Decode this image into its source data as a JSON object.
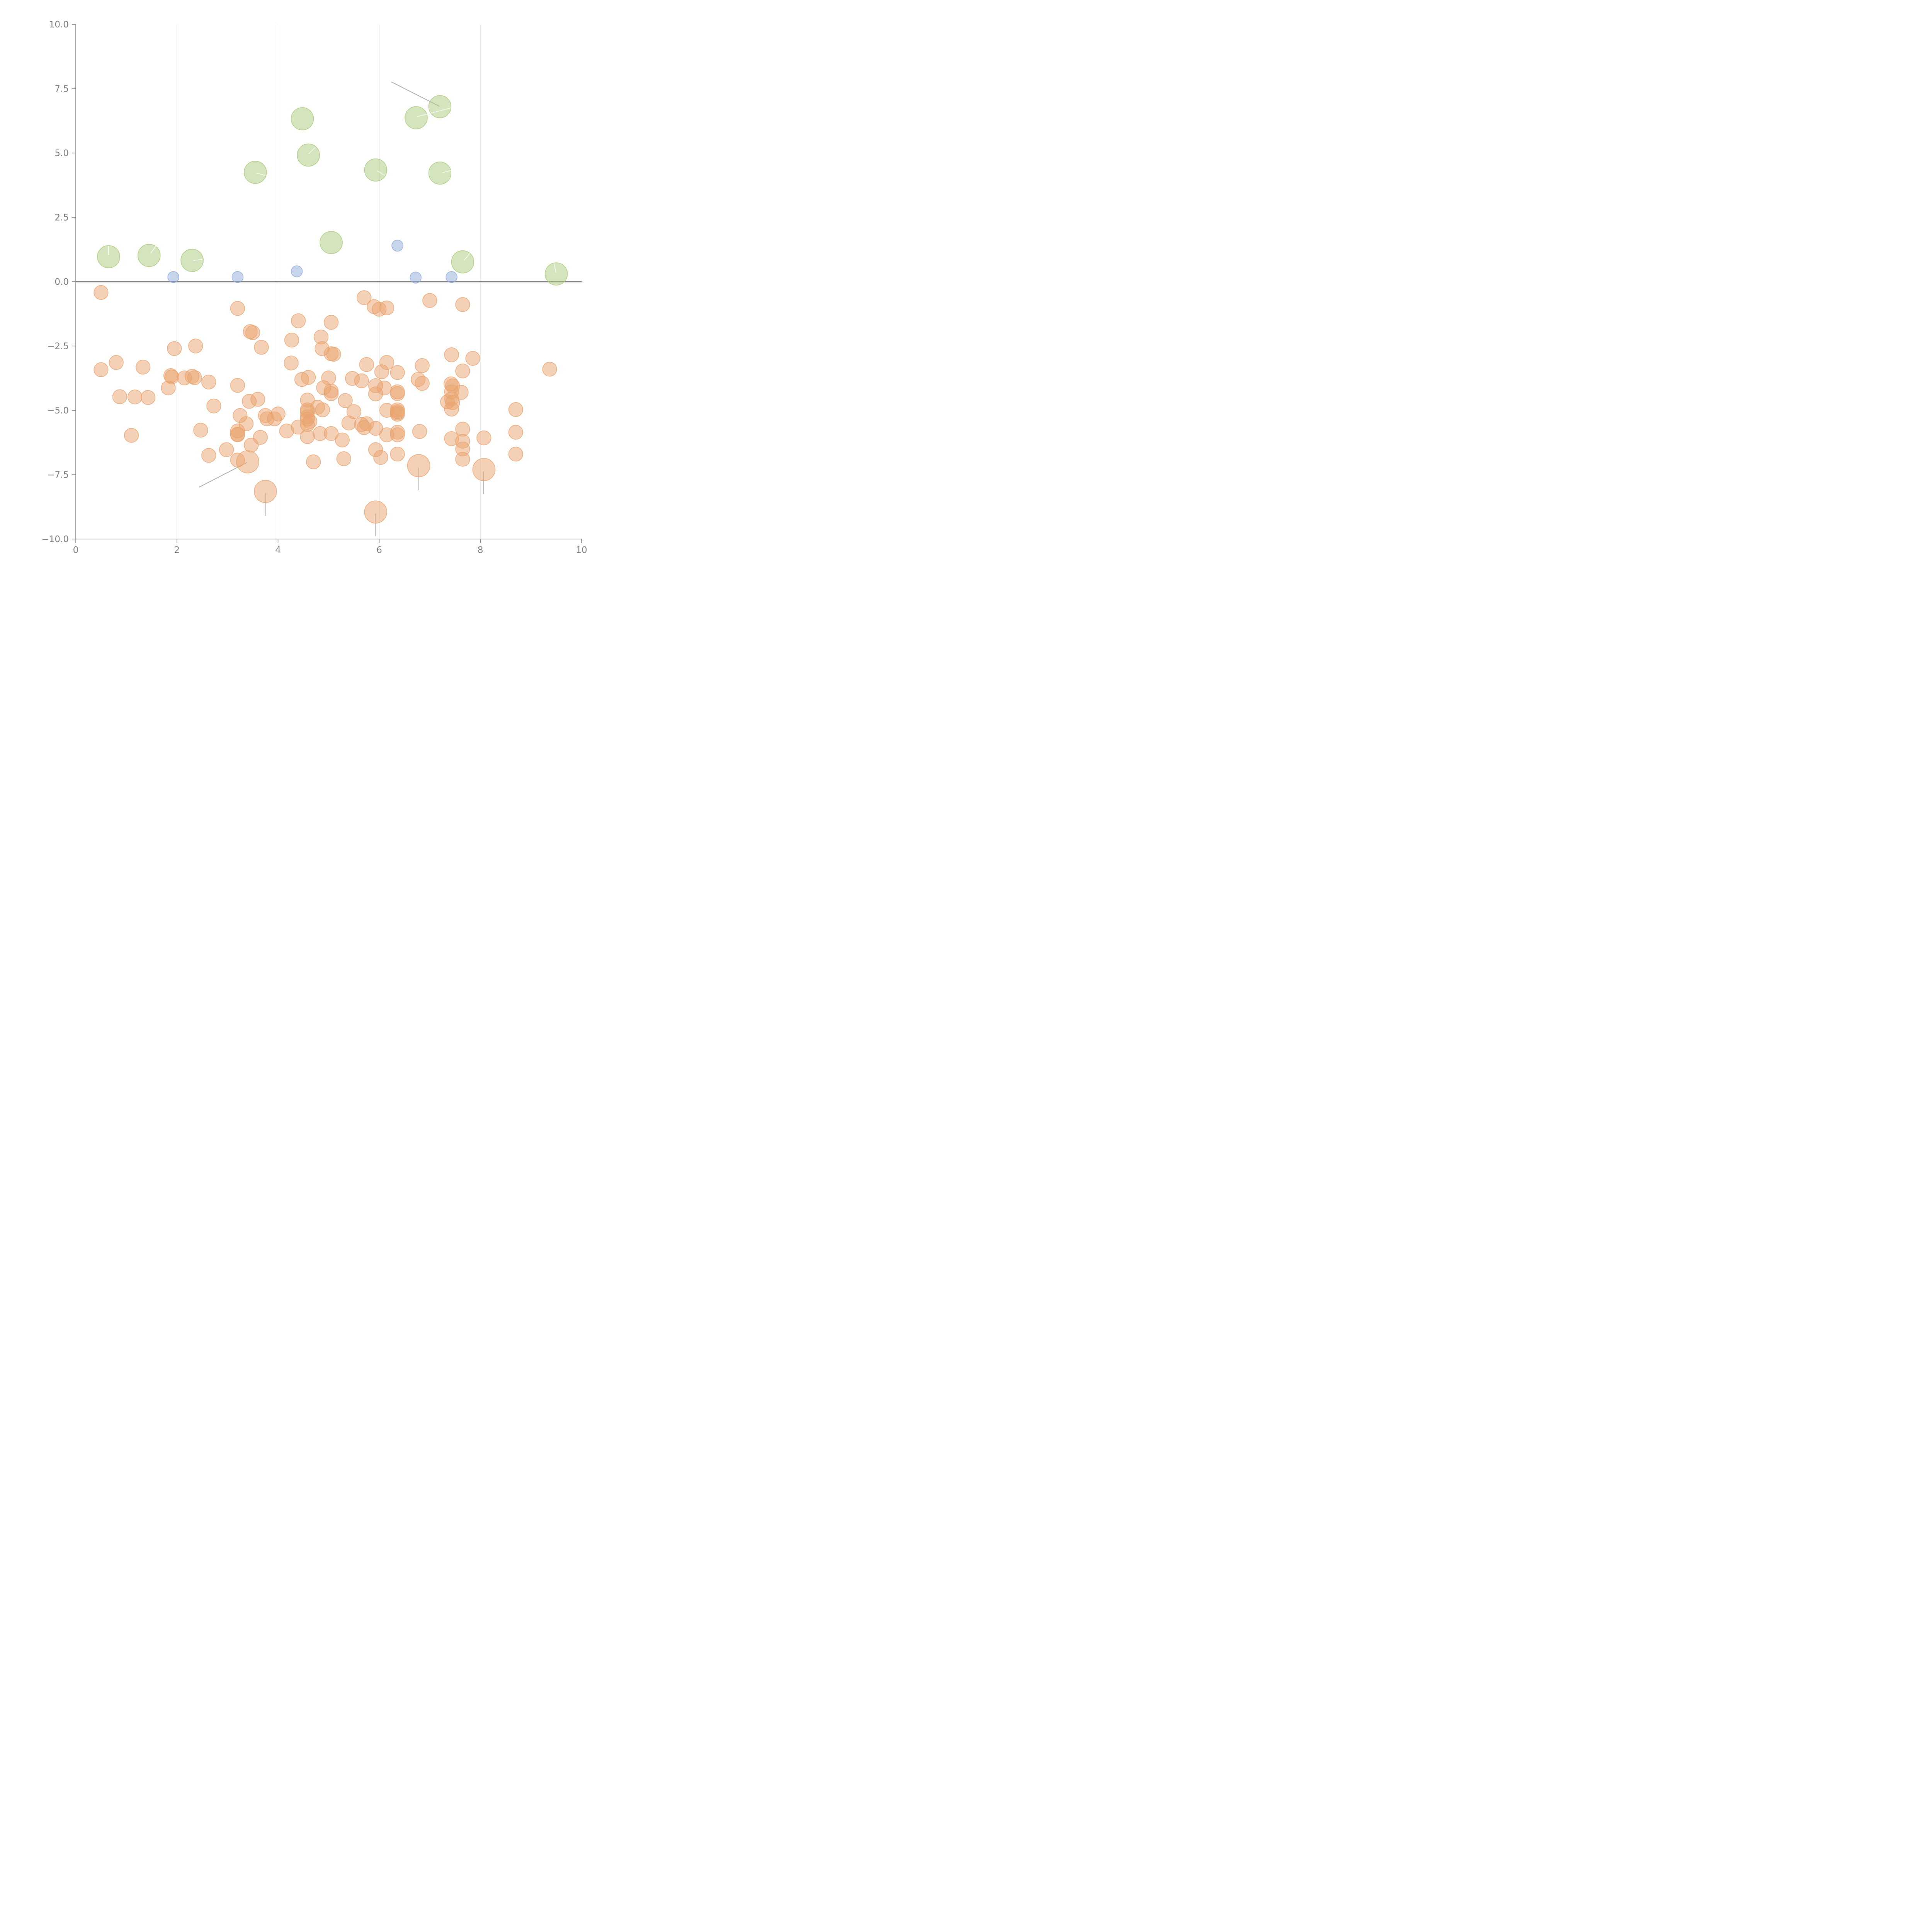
{
  "chart_data": {
    "type": "scatter",
    "title": "",
    "xlabel": "",
    "ylabel": "",
    "xlim": [
      0,
      10
    ],
    "ylim": [
      -10,
      10
    ],
    "x_ticks": [
      0,
      2,
      4,
      6,
      8,
      10
    ],
    "y_ticks": [
      10,
      7.5,
      5,
      2.5,
      0,
      -2.5,
      -5,
      -7.5,
      -10
    ],
    "x_tick_labels": [
      "0",
      "2",
      "4",
      "6",
      "8",
      "10"
    ],
    "y_tick_labels": [
      "10.0",
      "7.5",
      "5.0",
      "2.5",
      "0.0",
      "−2.5",
      "−5.0",
      "−7.5",
      "−10.0"
    ],
    "grid": "vertical",
    "zero_line": 0,
    "series": [
      {
        "name": "green",
        "color": "#a9c97a",
        "size": 4,
        "points": [
          [
            0.65,
            0.97
          ],
          [
            1.45,
            1.02
          ],
          [
            2.3,
            0.83
          ],
          [
            3.55,
            4.25
          ],
          [
            4.48,
            6.33
          ],
          [
            4.6,
            4.92
          ],
          [
            5.05,
            1.52
          ],
          [
            5.93,
            4.34
          ],
          [
            6.73,
            6.37
          ],
          [
            7.2,
            6.8
          ],
          [
            7.2,
            4.22
          ],
          [
            7.65,
            0.77
          ],
          [
            9.5,
            0.3
          ]
        ]
      },
      {
        "name": "blue",
        "color": "#8eaad9",
        "size": 1,
        "points": [
          [
            1.93,
            0.18
          ],
          [
            3.2,
            0.18
          ],
          [
            4.37,
            0.4
          ],
          [
            6.36,
            1.4
          ],
          [
            6.72,
            0.16
          ],
          [
            7.43,
            0.18
          ]
        ]
      },
      {
        "name": "orange-small",
        "color": "#e9a36e",
        "size": 1.6,
        "points": [
          [
            0.5,
            -0.42
          ],
          [
            3.2,
            -1.04
          ],
          [
            5.9,
            -0.97
          ],
          [
            6.0,
            -1.07
          ],
          [
            6.15,
            -1.02
          ],
          [
            5.7,
            -0.62
          ],
          [
            7.0,
            -0.73
          ],
          [
            7.65,
            -0.89
          ],
          [
            4.4,
            -1.52
          ],
          [
            5.05,
            -1.58
          ],
          [
            3.45,
            -1.94
          ],
          [
            3.5,
            -1.98
          ],
          [
            4.85,
            -2.15
          ],
          [
            1.95,
            -2.6
          ],
          [
            2.37,
            -2.5
          ],
          [
            3.67,
            -2.55
          ],
          [
            4.27,
            -2.27
          ],
          [
            4.87,
            -2.6
          ],
          [
            5.05,
            -2.8
          ],
          [
            5.1,
            -2.82
          ],
          [
            0.5,
            -3.42
          ],
          [
            0.8,
            -3.14
          ],
          [
            1.33,
            -3.32
          ],
          [
            4.26,
            -3.16
          ],
          [
            5.75,
            -3.22
          ],
          [
            6.15,
            -3.14
          ],
          [
            6.85,
            -3.26
          ],
          [
            7.43,
            -2.84
          ],
          [
            7.85,
            -2.98
          ],
          [
            9.37,
            -3.4
          ],
          [
            6.05,
            -3.5
          ],
          [
            6.36,
            -3.53
          ],
          [
            7.65,
            -3.47
          ],
          [
            1.88,
            -3.65
          ],
          [
            1.9,
            -3.7
          ],
          [
            2.15,
            -3.74
          ],
          [
            2.3,
            -3.68
          ],
          [
            2.35,
            -3.73
          ],
          [
            2.63,
            -3.9
          ],
          [
            4.47,
            -3.8
          ],
          [
            4.6,
            -3.72
          ],
          [
            5.0,
            -3.74
          ],
          [
            5.47,
            -3.76
          ],
          [
            5.65,
            -3.85
          ],
          [
            6.77,
            -3.8
          ],
          [
            6.85,
            -3.95
          ],
          [
            7.42,
            -3.97
          ],
          [
            7.45,
            -4.05
          ],
          [
            1.83,
            -4.13
          ],
          [
            3.2,
            -4.03
          ],
          [
            4.9,
            -4.12
          ],
          [
            5.05,
            -4.25
          ],
          [
            5.05,
            -4.35
          ],
          [
            5.93,
            -4.04
          ],
          [
            5.93,
            -4.36
          ],
          [
            6.1,
            -4.13
          ],
          [
            6.36,
            -4.28
          ],
          [
            6.36,
            -4.35
          ],
          [
            7.43,
            -4.28
          ],
          [
            7.62,
            -4.3
          ],
          [
            0.87,
            -4.47
          ],
          [
            1.17,
            -4.48
          ],
          [
            1.43,
            -4.5
          ],
          [
            3.43,
            -4.65
          ],
          [
            3.6,
            -4.57
          ],
          [
            4.58,
            -4.6
          ],
          [
            5.33,
            -4.62
          ],
          [
            7.35,
            -4.67
          ],
          [
            7.43,
            -4.55
          ],
          [
            7.45,
            -4.7
          ],
          [
            2.73,
            -4.83
          ],
          [
            4.58,
            -4.98
          ],
          [
            4.58,
            -5.05
          ],
          [
            4.78,
            -4.88
          ],
          [
            4.88,
            -4.98
          ],
          [
            5.5,
            -5.05
          ],
          [
            6.15,
            -5.0
          ],
          [
            6.36,
            -4.98
          ],
          [
            6.36,
            -5.05
          ],
          [
            6.36,
            -5.1
          ],
          [
            6.36,
            -5.15
          ],
          [
            7.43,
            -4.95
          ],
          [
            8.7,
            -4.97
          ],
          [
            3.25,
            -5.2
          ],
          [
            3.75,
            -5.2
          ],
          [
            3.78,
            -5.33
          ],
          [
            3.93,
            -5.33
          ],
          [
            4.0,
            -5.14
          ],
          [
            4.58,
            -5.25
          ],
          [
            4.58,
            -5.34
          ],
          [
            4.63,
            -5.43
          ],
          [
            3.37,
            -5.52
          ],
          [
            4.58,
            -5.55
          ],
          [
            5.4,
            -5.49
          ],
          [
            5.65,
            -5.55
          ],
          [
            5.7,
            -5.67
          ],
          [
            5.75,
            -5.52
          ],
          [
            5.93,
            -5.7
          ],
          [
            2.47,
            -5.77
          ],
          [
            3.2,
            -5.8
          ],
          [
            3.2,
            -5.93
          ],
          [
            3.2,
            -5.95
          ],
          [
            4.17,
            -5.8
          ],
          [
            4.4,
            -5.65
          ],
          [
            4.83,
            -5.9
          ],
          [
            5.05,
            -5.9
          ],
          [
            6.15,
            -5.95
          ],
          [
            6.36,
            -5.85
          ],
          [
            6.36,
            -5.95
          ],
          [
            6.8,
            -5.82
          ],
          [
            7.43,
            -6.1
          ],
          [
            7.65,
            -5.73
          ],
          [
            8.7,
            -5.85
          ],
          [
            1.1,
            -5.97
          ],
          [
            3.65,
            -6.05
          ],
          [
            4.58,
            -6.02
          ],
          [
            5.27,
            -6.15
          ],
          [
            7.65,
            -6.2
          ],
          [
            8.07,
            -6.07
          ],
          [
            3.47,
            -6.35
          ],
          [
            2.98,
            -6.53
          ],
          [
            5.93,
            -6.53
          ],
          [
            7.65,
            -6.5
          ],
          [
            2.63,
            -6.75
          ],
          [
            6.36,
            -6.7
          ],
          [
            8.7,
            -6.7
          ],
          [
            3.2,
            -6.93
          ],
          [
            4.7,
            -7.0
          ],
          [
            5.3,
            -6.88
          ],
          [
            6.03,
            -6.83
          ],
          [
            7.65,
            -6.9
          ]
        ]
      },
      {
        "name": "orange-large",
        "color": "#e9a36e",
        "size": 4,
        "points": [
          [
            3.4,
            -7.0
          ],
          [
            3.75,
            -8.15
          ],
          [
            5.93,
            -8.95
          ],
          [
            6.78,
            -7.15
          ],
          [
            8.07,
            -7.3
          ]
        ]
      }
    ]
  }
}
